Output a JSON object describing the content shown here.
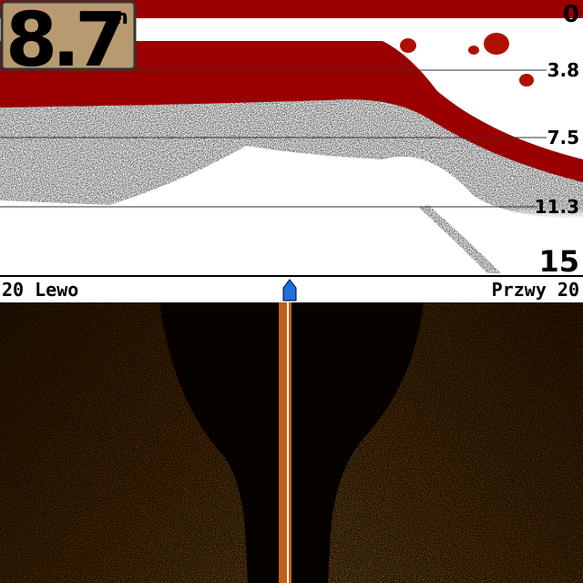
{
  "depth_readout": {
    "value": "8.7",
    "unit": "m"
  },
  "depth_scale": [
    "0",
    "3.8",
    "7.5",
    "11.3",
    "15"
  ],
  "side_scan": {
    "left_label": "20 Lewo",
    "right_label": "Przwy 20"
  }
}
